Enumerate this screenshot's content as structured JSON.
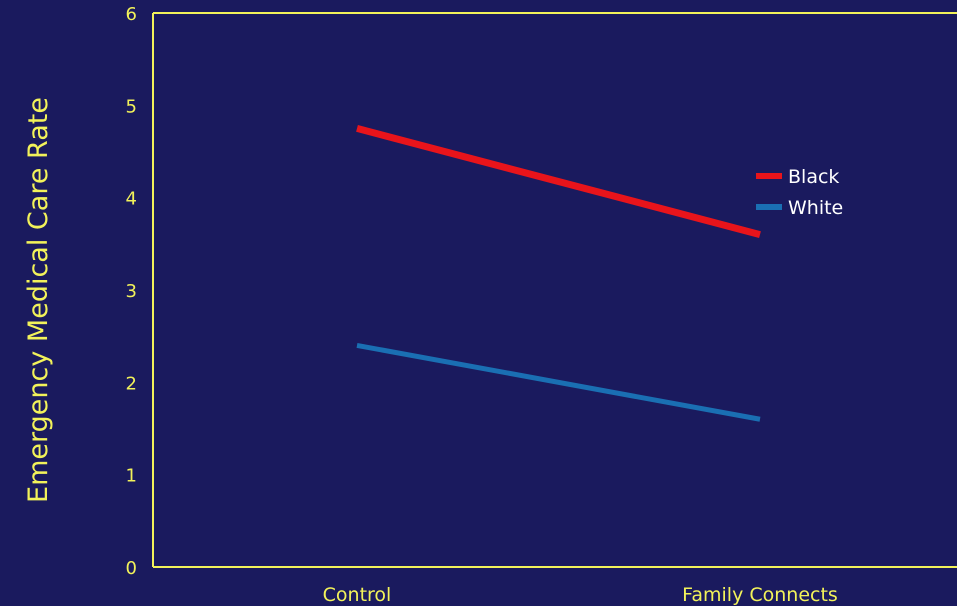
{
  "chart_data": {
    "type": "line",
    "title": "",
    "xlabel": "",
    "ylabel": "Emergency Medical Care Rate",
    "categories": [
      "Control",
      "Family Connects"
    ],
    "ylim": [
      0,
      6
    ],
    "yticks": [
      "0",
      "1",
      "2",
      "3",
      "4",
      "5",
      "6"
    ],
    "grid": false,
    "legend_position": "right",
    "series": [
      {
        "name": "Black",
        "values": [
          4.75,
          3.6
        ],
        "color": "#e8141b"
      },
      {
        "name": "White",
        "values": [
          2.4,
          1.6
        ],
        "color": "#1a6fb3"
      }
    ]
  },
  "colors": {
    "background": "#1a1a5e",
    "axis": "#f2f25a",
    "text": "#f2f25a",
    "legend_text": "#ffffff"
  }
}
